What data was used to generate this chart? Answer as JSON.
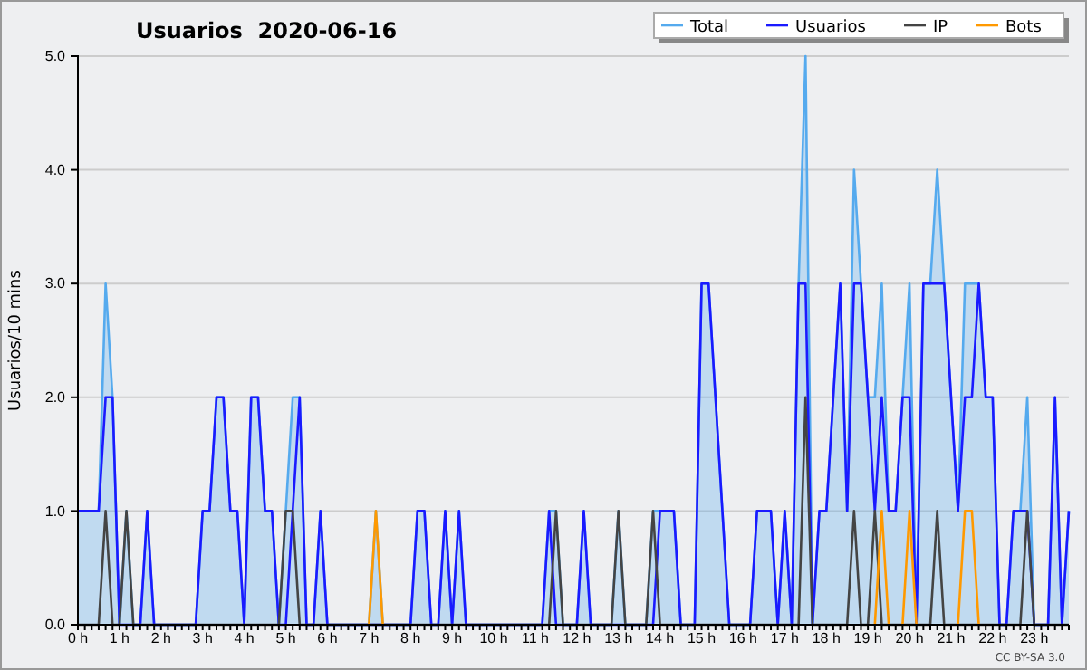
{
  "chart_data": {
    "type": "line",
    "title": "Usuarios  2020-06-16",
    "ylabel": "Usuarios/10 mins",
    "categories": [
      "0 h",
      null,
      null,
      null,
      null,
      null,
      "1 h",
      null,
      null,
      null,
      null,
      null,
      "2 h",
      null,
      null,
      null,
      null,
      null,
      "3 h",
      null,
      null,
      null,
      null,
      null,
      "4 h",
      null,
      null,
      null,
      null,
      null,
      "5 h",
      null,
      null,
      null,
      null,
      null,
      "6 h",
      null,
      null,
      null,
      null,
      null,
      "7 h",
      null,
      null,
      null,
      null,
      null,
      "8 h",
      null,
      null,
      null,
      null,
      null,
      "9 h",
      null,
      null,
      null,
      null,
      null,
      "10 h",
      null,
      null,
      null,
      null,
      null,
      "11 h",
      null,
      null,
      null,
      null,
      null,
      "12 h",
      null,
      null,
      null,
      null,
      null,
      "13 h",
      null,
      null,
      null,
      null,
      null,
      "14 h",
      null,
      null,
      null,
      null,
      null,
      "15 h",
      null,
      null,
      null,
      null,
      null,
      "16 h",
      null,
      null,
      null,
      null,
      null,
      "17 h",
      null,
      null,
      null,
      null,
      null,
      "18 h",
      null,
      null,
      null,
      null,
      null,
      "19 h",
      null,
      null,
      null,
      null,
      null,
      "20 h",
      null,
      null,
      null,
      null,
      null,
      "21 h",
      null,
      null,
      null,
      null,
      null,
      "22 h",
      null,
      null,
      null,
      null,
      null,
      "23 h",
      null,
      null,
      null,
      null,
      null
    ],
    "series": [
      {
        "name": "Total",
        "type": "area",
        "color": "#55aaee",
        "values": [
          1,
          1,
          1,
          1,
          3,
          2,
          0,
          1,
          0,
          0,
          1,
          0,
          0,
          0,
          0,
          0,
          0,
          0,
          1,
          1,
          2,
          2,
          1,
          1,
          0,
          2,
          2,
          1,
          1,
          0,
          1,
          2,
          2,
          0,
          0,
          1,
          0,
          0,
          0,
          0,
          0,
          0,
          0,
          1,
          0,
          0,
          0,
          0,
          0,
          1,
          1,
          0,
          0,
          1,
          0,
          1,
          0,
          0,
          0,
          0,
          0,
          0,
          0,
          0,
          0,
          0,
          0,
          0,
          1,
          1,
          0,
          0,
          0,
          1,
          0,
          0,
          0,
          0,
          1,
          0,
          0,
          0,
          0,
          1,
          1,
          1,
          1,
          0,
          0,
          0,
          3,
          3,
          2,
          1,
          0,
          0,
          0,
          0,
          1,
          1,
          1,
          0,
          1,
          0,
          3,
          5,
          0,
          1,
          1,
          2,
          3,
          1,
          4,
          3,
          2,
          2,
          3,
          1,
          1,
          2,
          3,
          0,
          3,
          3,
          4,
          3,
          2,
          1,
          3,
          3,
          3,
          2,
          2,
          0,
          0,
          1,
          1,
          2,
          0,
          0,
          0,
          2,
          0,
          1
        ]
      },
      {
        "name": "Usuarios",
        "color": "#1a1aff",
        "values": [
          1,
          1,
          1,
          1,
          2,
          2,
          0,
          0,
          0,
          0,
          1,
          0,
          0,
          0,
          0,
          0,
          0,
          0,
          1,
          1,
          2,
          2,
          1,
          1,
          0,
          2,
          2,
          1,
          1,
          0,
          0,
          1,
          2,
          0,
          0,
          1,
          0,
          0,
          0,
          0,
          0,
          0,
          0,
          0,
          0,
          0,
          0,
          0,
          0,
          1,
          1,
          0,
          0,
          1,
          0,
          1,
          0,
          0,
          0,
          0,
          0,
          0,
          0,
          0,
          0,
          0,
          0,
          0,
          1,
          0,
          0,
          0,
          0,
          1,
          0,
          0,
          0,
          0,
          0,
          0,
          0,
          0,
          0,
          0,
          1,
          1,
          1,
          0,
          0,
          0,
          3,
          3,
          2,
          1,
          0,
          0,
          0,
          0,
          1,
          1,
          1,
          0,
          1,
          0,
          3,
          3,
          0,
          1,
          1,
          2,
          3,
          1,
          3,
          3,
          2,
          1,
          2,
          1,
          1,
          2,
          2,
          0,
          3,
          3,
          3,
          3,
          2,
          1,
          2,
          2,
          3,
          2,
          2,
          0,
          0,
          1,
          1,
          1,
          0,
          0,
          0,
          2,
          0,
          1
        ]
      },
      {
        "name": "IP",
        "color": "#444444",
        "values": [
          0,
          0,
          0,
          0,
          1,
          0,
          0,
          1,
          0,
          0,
          0,
          0,
          0,
          0,
          0,
          0,
          0,
          0,
          0,
          0,
          0,
          0,
          0,
          0,
          0,
          0,
          0,
          0,
          0,
          0,
          1,
          1,
          0,
          0,
          0,
          0,
          0,
          0,
          0,
          0,
          0,
          0,
          0,
          0,
          0,
          0,
          0,
          0,
          0,
          0,
          0,
          0,
          0,
          0,
          0,
          0,
          0,
          0,
          0,
          0,
          0,
          0,
          0,
          0,
          0,
          0,
          0,
          0,
          0,
          1,
          0,
          0,
          0,
          0,
          0,
          0,
          0,
          0,
          1,
          0,
          0,
          0,
          0,
          1,
          0,
          0,
          0,
          0,
          0,
          0,
          0,
          0,
          0,
          0,
          0,
          0,
          0,
          0,
          0,
          0,
          0,
          0,
          0,
          0,
          0,
          2,
          0,
          0,
          0,
          0,
          0,
          0,
          1,
          0,
          0,
          1,
          0,
          0,
          0,
          0,
          0,
          0,
          0,
          0,
          1,
          0,
          0,
          0,
          0,
          0,
          0,
          0,
          0,
          0,
          0,
          0,
          0,
          1,
          0,
          0,
          0,
          0,
          0,
          0
        ]
      },
      {
        "name": "Bots",
        "color": "#ff9900",
        "values": [
          null,
          null,
          null,
          null,
          null,
          null,
          null,
          null,
          null,
          null,
          null,
          null,
          null,
          null,
          null,
          null,
          null,
          null,
          null,
          null,
          null,
          null,
          null,
          null,
          null,
          null,
          null,
          null,
          null,
          null,
          null,
          null,
          null,
          null,
          null,
          null,
          null,
          null,
          null,
          null,
          null,
          null,
          0,
          1,
          0,
          null,
          null,
          null,
          null,
          null,
          null,
          null,
          null,
          null,
          null,
          null,
          null,
          null,
          null,
          null,
          null,
          null,
          null,
          null,
          null,
          null,
          null,
          null,
          null,
          null,
          null,
          null,
          null,
          null,
          null,
          null,
          null,
          null,
          null,
          null,
          null,
          null,
          null,
          null,
          null,
          null,
          null,
          null,
          null,
          null,
          null,
          null,
          null,
          null,
          null,
          null,
          null,
          null,
          null,
          null,
          null,
          null,
          null,
          null,
          null,
          null,
          null,
          null,
          null,
          null,
          null,
          null,
          null,
          null,
          null,
          0,
          1,
          0,
          null,
          0,
          1,
          0,
          null,
          null,
          null,
          null,
          null,
          0,
          1,
          1,
          0,
          null,
          null,
          null,
          null,
          null,
          null,
          null,
          null,
          null,
          null,
          null,
          null,
          null
        ]
      }
    ],
    "ylim": [
      0,
      5
    ],
    "yticks": [
      {
        "value": 0,
        "label": "0.0"
      },
      {
        "value": 1,
        "label": "1.0"
      },
      {
        "value": 2,
        "label": "2.0"
      },
      {
        "value": 3,
        "label": "3.0"
      },
      {
        "value": 4,
        "label": "4.0"
      },
      {
        "value": 5,
        "label": "5.0"
      }
    ],
    "grid": "y",
    "legend": "top right",
    "marker": "none",
    "annotations": [
      "CC BY-SA 3.0"
    ]
  }
}
